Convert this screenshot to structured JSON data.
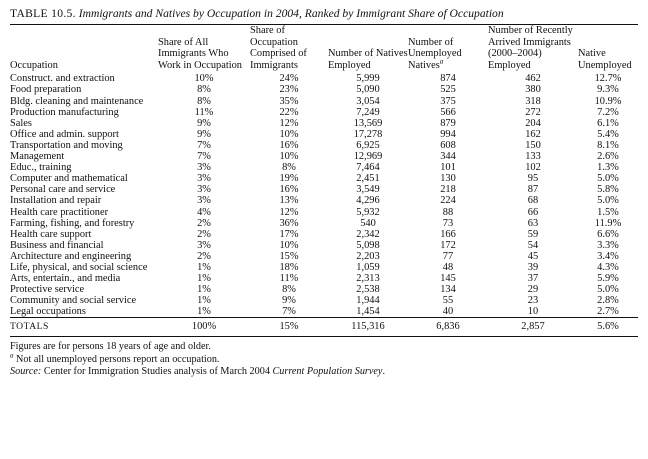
{
  "caption": {
    "label": "TABLE 10.5.",
    "title": "Immigrants and Natives by Occupation in 2004, Ranked by Immigrant Share of Occupation"
  },
  "columns": [
    "Occupation",
    "Share of All Immigrants Who Work in Occupation",
    "Share of Occupation Comprised of Immigrants",
    "Number of Natives Employed",
    "Number of Unemployed Natives",
    "Number of Recently Arrived Immigrants (2000–2004) Employed",
    "Native Unemployed"
  ],
  "footnote_marker": "a",
  "rows": [
    [
      "Construct. and extraction",
      "10%",
      "24%",
      "5,999",
      "874",
      "462",
      "12.7%"
    ],
    [
      "Food preparation",
      "8%",
      "23%",
      "5,090",
      "525",
      "380",
      "9.3%"
    ],
    [
      "Bldg. cleaning and maintenance",
      "8%",
      "35%",
      "3,054",
      "375",
      "318",
      "10.9%"
    ],
    [
      "Production manufacturing",
      "11%",
      "22%",
      "7,249",
      "566",
      "272",
      "7.2%"
    ],
    [
      "Sales",
      "9%",
      "12%",
      "13,569",
      "879",
      "204",
      "6.1%"
    ],
    [
      "Office and admin. support",
      "9%",
      "10%",
      "17,278",
      "994",
      "162",
      "5.4%"
    ],
    [
      "Transportation and moving",
      "7%",
      "16%",
      "6,925",
      "608",
      "150",
      "8.1%"
    ],
    [
      "Management",
      "7%",
      "10%",
      "12,969",
      "344",
      "133",
      "2.6%"
    ],
    [
      "Educ., training",
      "3%",
      "8%",
      "7,464",
      "101",
      "102",
      "1.3%"
    ],
    [
      "Computer and mathematical",
      "3%",
      "19%",
      "2,451",
      "130",
      "95",
      "5.0%"
    ],
    [
      "Personal care and service",
      "3%",
      "16%",
      "3,549",
      "218",
      "87",
      "5.8%"
    ],
    [
      "Installation and repair",
      "3%",
      "13%",
      "4,296",
      "224",
      "68",
      "5.0%"
    ],
    [
      "Health care practitioner",
      "4%",
      "12%",
      "5,932",
      "88",
      "66",
      "1.5%"
    ],
    [
      "Farming, fishing, and forestry",
      "2%",
      "36%",
      "540",
      "73",
      "63",
      "11.9%"
    ],
    [
      "Health care support",
      "2%",
      "17%",
      "2,342",
      "166",
      "59",
      "6.6%"
    ],
    [
      "Business and financial",
      "3%",
      "10%",
      "5,098",
      "172",
      "54",
      "3.3%"
    ],
    [
      "Architecture and engineering",
      "2%",
      "15%",
      "2,203",
      "77",
      "45",
      "3.4%"
    ],
    [
      "Life, physical, and social science",
      "1%",
      "18%",
      "1,059",
      "48",
      "39",
      "4.3%"
    ],
    [
      "Arts, entertain., and media",
      "1%",
      "11%",
      "2,313",
      "145",
      "37",
      "5.9%"
    ],
    [
      "Protective service",
      "1%",
      "8%",
      "2,538",
      "134",
      "29",
      "5.0%"
    ],
    [
      "Community and social service",
      "1%",
      "9%",
      "1,944",
      "55",
      "23",
      "2.8%"
    ],
    [
      "Legal occupations",
      "1%",
      "7%",
      "1,454",
      "40",
      "10",
      "2.7%"
    ]
  ],
  "totals": [
    "TOTALS",
    "100%",
    "15%",
    "115,316",
    "6,836",
    "2,857",
    "5.6%"
  ],
  "notes": {
    "line1": "Figures are for persons 18 years of age and older.",
    "footnote_mark": "a",
    "footnote_text": " Not all unemployed persons report an occupation.",
    "source_label": "Source:",
    "source_text": " Center for Immigration Studies analysis of March 2004 ",
    "source_italic": "Current Population Survey",
    "source_end": "."
  }
}
